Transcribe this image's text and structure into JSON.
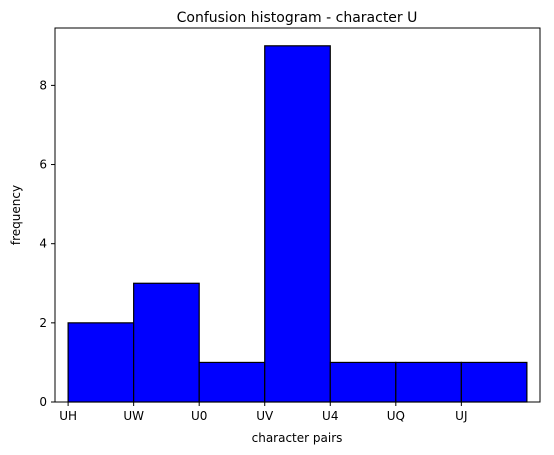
{
  "chart_data": {
    "type": "bar",
    "title": "Confusion histogram - character U",
    "xlabel": "character pairs",
    "ylabel": "frequency",
    "x_tick_labels": [
      "UH",
      "UW",
      "U0",
      "UV",
      "U4",
      "UQ",
      "UJ"
    ],
    "bins": [
      {
        "from": 0,
        "to": 1,
        "value": 2
      },
      {
        "from": 1,
        "to": 2,
        "value": 3
      },
      {
        "from": 2,
        "to": 3,
        "value": 1
      },
      {
        "from": 3,
        "to": 4,
        "value": 9
      },
      {
        "from": 4,
        "to": 5,
        "value": 1
      },
      {
        "from": 5,
        "to": 6,
        "value": 1
      },
      {
        "from": 6,
        "to": 7,
        "value": 1
      }
    ],
    "xlim": [
      -0.2,
      7.2
    ],
    "ylim": [
      0,
      9.45
    ],
    "y_ticks": [
      0,
      2,
      4,
      6,
      8
    ],
    "grid": false,
    "colors": {
      "bar_fill": "#0000ff",
      "bar_edge": "#000000"
    }
  }
}
